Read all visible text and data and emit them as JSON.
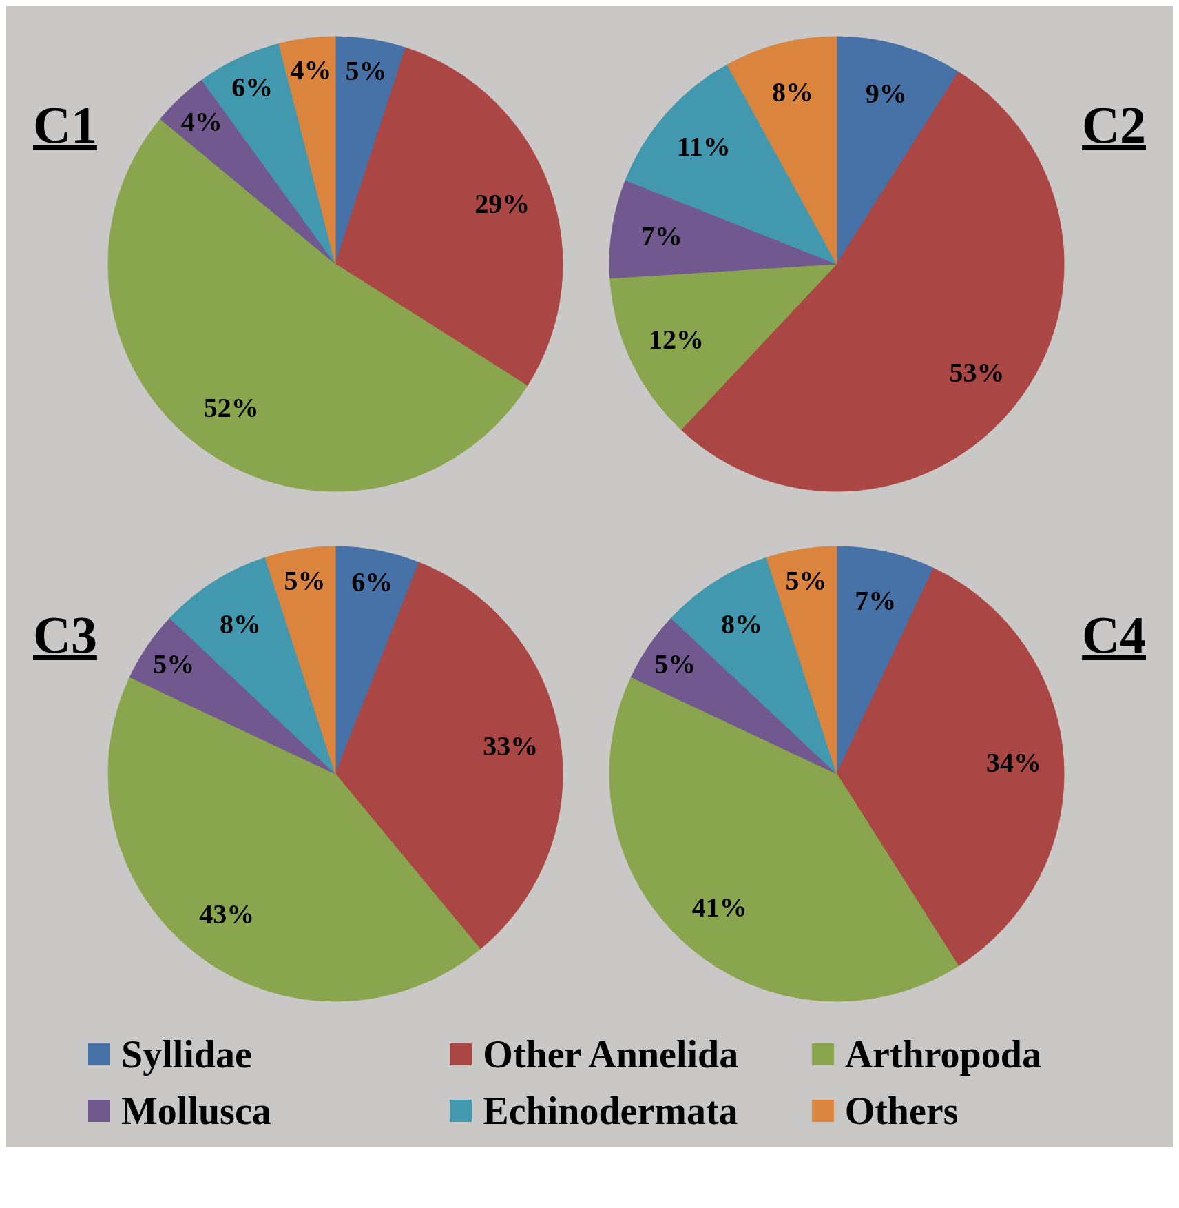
{
  "chart_data": [
    {
      "type": "pie",
      "title": "C1",
      "categories": [
        "Syllidae",
        "Other Annelida",
        "Arthropoda",
        "Mollusca",
        "Echinodermata",
        "Others"
      ],
      "values": [
        5,
        29,
        52,
        4,
        6,
        4
      ],
      "value_labels": [
        "5%",
        "29%",
        "52%",
        "4%",
        "6%",
        "4%"
      ],
      "colors": [
        "#4672a8",
        "#aa4644",
        "#89a54e",
        "#71588f",
        "#4198af",
        "#db843d"
      ],
      "legend": "bottom"
    },
    {
      "type": "pie",
      "title": "C2",
      "categories": [
        null,
        null,
        null,
        null,
        null,
        null
      ],
      "values": [
        9,
        53,
        12,
        7,
        11,
        8
      ],
      "value_labels": [
        "9%",
        "53%",
        "12%",
        "7%",
        "11%",
        "8%"
      ],
      "colors": [
        "#4672a8",
        "#aa4644",
        "#89a54e",
        "#71588f",
        "#4198af",
        "#db843d"
      ]
    },
    {
      "type": "pie",
      "title": "C3",
      "categories": [
        null,
        null,
        null,
        null,
        null,
        null
      ],
      "values": [
        6,
        33,
        43,
        5,
        8,
        5
      ],
      "value_labels": [
        "6%",
        "33%",
        "43%",
        "5%",
        "8%",
        "5%"
      ],
      "colors": [
        "#4672a8",
        "#aa4644",
        "#89a54e",
        "#71588f",
        "#4198af",
        "#db843d"
      ]
    },
    {
      "type": "pie",
      "title": "C4",
      "categories": [
        null,
        null,
        null,
        null,
        null,
        null
      ],
      "values": [
        7,
        34,
        41,
        5,
        8,
        5
      ],
      "value_labels": [
        "7%",
        "34%",
        "41%",
        "5%",
        "8%",
        "5%"
      ],
      "colors": [
        "#4672a8",
        "#aa4644",
        "#89a54e",
        "#71588f",
        "#4198af",
        "#db843d"
      ]
    }
  ]
}
